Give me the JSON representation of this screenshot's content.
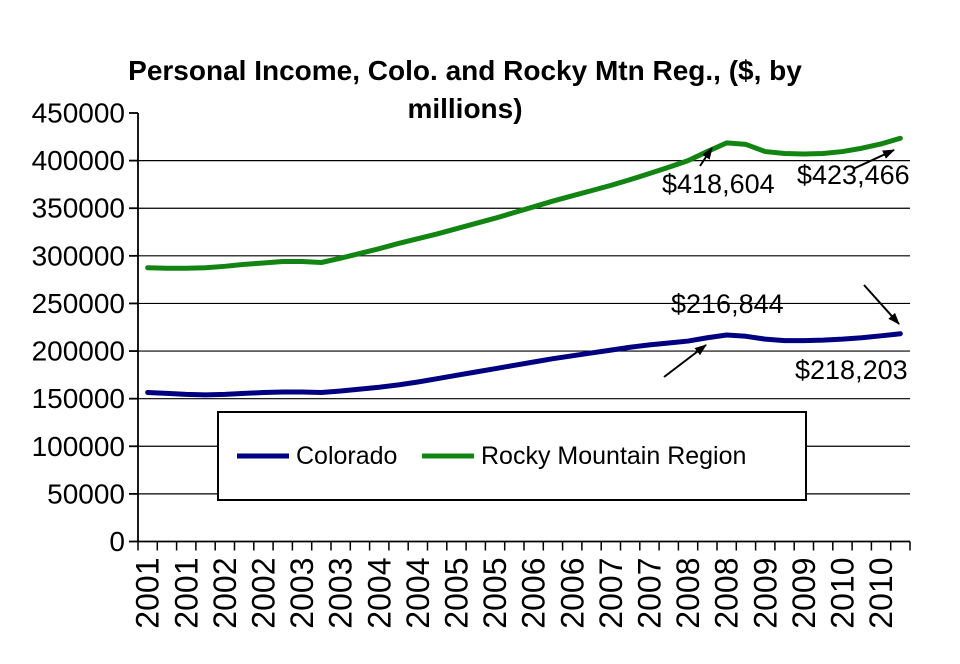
{
  "chart_data": {
    "type": "line",
    "title": "Personal Income, Colo. and Rocky Mtn Reg., ($, by millions)",
    "grid": "horizontal",
    "legend_position": "bottom-center-overlay",
    "y_axis": {
      "min": 0,
      "max": 450000,
      "step": 50000,
      "tick_labels": [
        "0",
        "50000",
        "100000",
        "150000",
        "200000",
        "250000",
        "300000",
        "350000",
        "400000",
        "450000"
      ]
    },
    "x_tick_labels": [
      "2001",
      "2001",
      "2002",
      "2002",
      "2003",
      "2003",
      "2004",
      "2004",
      "2005",
      "2005",
      "2006",
      "2006",
      "2007",
      "2007",
      "2008",
      "2008",
      "2009",
      "2009",
      "2010",
      "2010"
    ],
    "categories": [
      "2001 Q1",
      "2001 Q2",
      "2001 Q3",
      "2001 Q4",
      "2002 Q1",
      "2002 Q2",
      "2002 Q3",
      "2002 Q4",
      "2003 Q1",
      "2003 Q2",
      "2003 Q3",
      "2003 Q4",
      "2004 Q1",
      "2004 Q2",
      "2004 Q3",
      "2004 Q4",
      "2005 Q1",
      "2005 Q2",
      "2005 Q3",
      "2005 Q4",
      "2006 Q1",
      "2006 Q2",
      "2006 Q3",
      "2006 Q4",
      "2007 Q1",
      "2007 Q2",
      "2007 Q3",
      "2007 Q4",
      "2008 Q1",
      "2008 Q2",
      "2008 Q3",
      "2008 Q4",
      "2009 Q1",
      "2009 Q2",
      "2009 Q3",
      "2009 Q4",
      "2010 Q1",
      "2010 Q2",
      "2010 Q3",
      "2010 Q4"
    ],
    "series": [
      {
        "name": "Colorado",
        "color": "#000080",
        "values": [
          156500,
          155500,
          154500,
          154000,
          154500,
          155500,
          156500,
          157000,
          157000,
          156500,
          158000,
          160000,
          162000,
          164500,
          167500,
          171000,
          174500,
          178000,
          181500,
          185000,
          188500,
          192000,
          195000,
          198000,
          201000,
          204000,
          206500,
          208500,
          210500,
          214000,
          216844,
          215500,
          212500,
          211000,
          211000,
          211500,
          212500,
          214000,
          216000,
          218203
        ]
      },
      {
        "name": "Rocky Mountain Region",
        "color": "#128412",
        "values": [
          287500,
          287000,
          287000,
          287500,
          289000,
          291000,
          292500,
          294000,
          294000,
          293000,
          297500,
          302500,
          307500,
          313000,
          318000,
          323000,
          328500,
          334000,
          339500,
          345500,
          351500,
          357500,
          363000,
          368500,
          374000,
          380000,
          386500,
          393000,
          400000,
          409500,
          418604,
          417000,
          409500,
          407500,
          407000,
          407500,
          409500,
          413000,
          417500,
          423466
        ]
      }
    ],
    "annotations": [
      {
        "label": "$418,604",
        "series": "Rocky Mountain Region",
        "category": "2008 Q3",
        "value": 418604
      },
      {
        "label": "$423,466",
        "series": "Rocky Mountain Region",
        "category": "2010 Q4",
        "value": 423466
      },
      {
        "label": "$216,844",
        "series": "Colorado",
        "category": "2008 Q3",
        "value": 216844
      },
      {
        "label": "$218,203",
        "series": "Colorado",
        "category": "2010 Q4",
        "value": 218203
      }
    ]
  }
}
